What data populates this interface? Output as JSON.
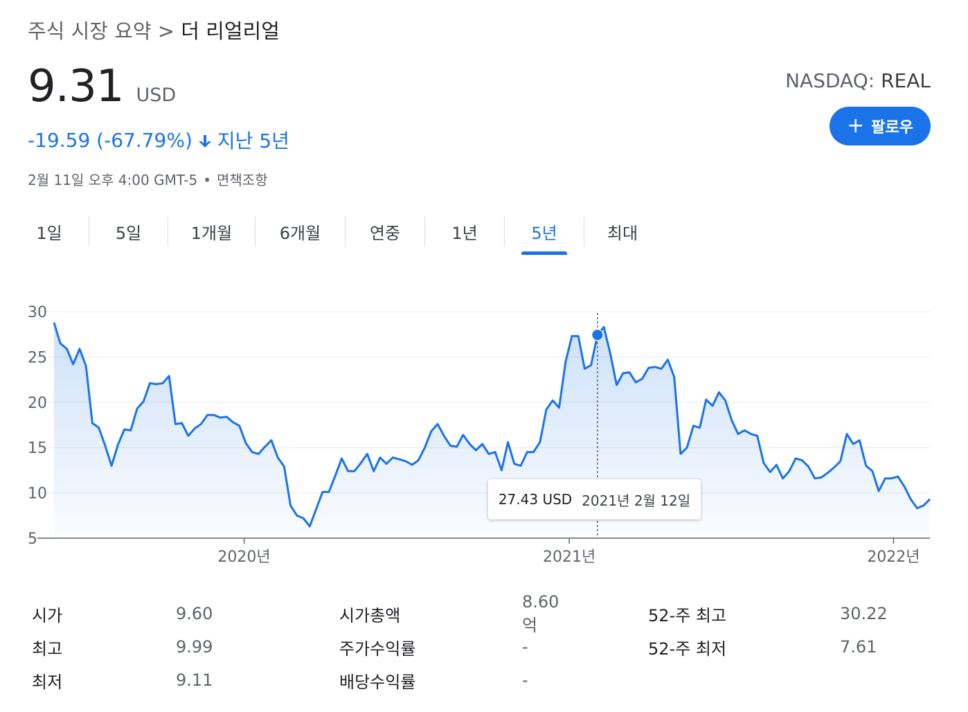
{
  "breadcrumb": {
    "parent": "주식 시장 요약",
    "separator": ">",
    "current": "더 리얼리얼"
  },
  "quote": {
    "price": "9.31",
    "currency": "USD",
    "change": "-19.59 (-67.79%)",
    "period": "지난 5년",
    "timestamp": "2월 11일 오후 4:00 GMT-5",
    "bullet": "•",
    "disclaimer": "면책조항",
    "exchange": "NASDAQ:",
    "symbol": "REAL"
  },
  "follow_button": {
    "label": "팔로우"
  },
  "tabs": [
    {
      "label": "1일"
    },
    {
      "label": "5일"
    },
    {
      "label": "1개월"
    },
    {
      "label": "6개월"
    },
    {
      "label": "연중"
    },
    {
      "label": "1년"
    },
    {
      "label": "5년",
      "active": true
    },
    {
      "label": "최대"
    }
  ],
  "colors": {
    "accent": "#1a73e8",
    "grid": "#e8eaed"
  },
  "chart_data": {
    "type": "area",
    "x_start": "2019-06",
    "x_end": "2022-02",
    "xtick_labels": [
      "2020년",
      "2021년",
      "2022년"
    ],
    "xtick_dates": [
      "2020-01-01",
      "2021-01-01",
      "2022-01-01"
    ],
    "ylim": [
      5,
      30
    ],
    "yticks": [
      30,
      25,
      20,
      15,
      10,
      5
    ],
    "grid": true,
    "series": [
      {
        "values": [
          28.8,
          26.5,
          25.9,
          24.2,
          25.9,
          24.0,
          17.7,
          17.2,
          15.2,
          13.0,
          15.3,
          17.0,
          16.9,
          19.3,
          20.1,
          22.1,
          22.0,
          22.1,
          22.9,
          17.6,
          17.7,
          16.3,
          17.1,
          17.6,
          18.6,
          18.6,
          18.3,
          18.4,
          17.8,
          17.4,
          15.5,
          14.5,
          14.3,
          15.1,
          15.8,
          13.9,
          12.9,
          8.6,
          7.5,
          7.2,
          6.3,
          8.2,
          10.1,
          10.1,
          11.9,
          13.8,
          12.4,
          12.4,
          13.3,
          14.3,
          12.4,
          13.9,
          13.2,
          13.9,
          13.7,
          13.5,
          13.1,
          13.6,
          15.0,
          16.8,
          17.6,
          16.3,
          15.2,
          15.1,
          16.4,
          15.4,
          14.7,
          15.4,
          14.3,
          14.5,
          12.5,
          15.6,
          13.2,
          13.0,
          14.5,
          14.5,
          15.6,
          19.2,
          20.2,
          19.4,
          24.4,
          27.3,
          27.3,
          23.7,
          24.1,
          27.43,
          28.3,
          25.4,
          21.9,
          23.2,
          23.3,
          22.2,
          22.6,
          23.8,
          23.9,
          23.7,
          24.7,
          22.8,
          14.3,
          15.0,
          17.4,
          17.2,
          20.3,
          19.6,
          21.1,
          20.2,
          18.0,
          16.5,
          16.9,
          16.5,
          16.3,
          13.3,
          12.3,
          13.1,
          11.6,
          12.4,
          13.8,
          13.6,
          12.9,
          11.6,
          11.7,
          12.2,
          12.8,
          13.5,
          16.5,
          15.4,
          15.8,
          13.0,
          12.4,
          10.2,
          11.6,
          11.6,
          11.8,
          10.7,
          9.3,
          8.3,
          8.6,
          9.31
        ]
      }
    ],
    "highlight": {
      "value": "27.43",
      "unit": "USD",
      "date": "2021년 2월 12일"
    }
  },
  "stats": [
    [
      {
        "label": "시가",
        "value": "9.60"
      },
      {
        "label": "최고",
        "value": "9.99"
      },
      {
        "label": "최저",
        "value": "9.11"
      }
    ],
    [
      {
        "label": "시가총액",
        "value": "8.60억"
      },
      {
        "label": "주가수익률",
        "value": "-"
      },
      {
        "label": "배당수익률",
        "value": "-"
      }
    ],
    [
      {
        "label": "52-주 최고",
        "value": "30.22"
      },
      {
        "label": "52-주 최저",
        "value": "7.61"
      }
    ]
  ]
}
